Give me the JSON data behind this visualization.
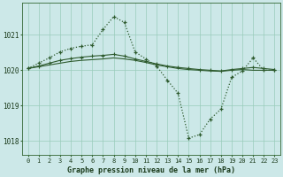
{
  "title": "Graphe pression niveau de la mer (hPa)",
  "bg_color": "#cce8e8",
  "line_color": "#2d5a2d",
  "grid_color": "#99ccbb",
  "x_labels": [
    "0",
    "1",
    "2",
    "3",
    "4",
    "5",
    "6",
    "7",
    "8",
    "9",
    "10",
    "11",
    "12",
    "13",
    "14",
    "15",
    "16",
    "17",
    "18",
    "19",
    "20",
    "21",
    "22",
    "23"
  ],
  "ylim": [
    1017.6,
    1021.9
  ],
  "yticks": [
    1018,
    1019,
    1020,
    1021
  ],
  "series_solid1": [
    1020.05,
    1020.1,
    1020.15,
    1020.2,
    1020.25,
    1020.28,
    1020.3,
    1020.32,
    1020.35,
    1020.32,
    1020.28,
    1020.22,
    1020.15,
    1020.1,
    1020.05,
    1020.02,
    1020.0,
    1019.98,
    1019.97,
    1020.0,
    1020.02,
    1020.0,
    1020.0,
    1020.0
  ],
  "series_solid2": [
    1020.05,
    1020.12,
    1020.2,
    1020.28,
    1020.33,
    1020.37,
    1020.4,
    1020.42,
    1020.45,
    1020.4,
    1020.32,
    1020.25,
    1020.18,
    1020.12,
    1020.08,
    1020.05,
    1020.02,
    1020.0,
    1019.98,
    1020.02,
    1020.05,
    1020.08,
    1020.05,
    1020.02
  ],
  "series_dotted": [
    1020.05,
    1020.2,
    1020.35,
    1020.52,
    1020.62,
    1020.68,
    1020.72,
    1021.15,
    1021.52,
    1021.35,
    1020.52,
    1020.32,
    1020.12,
    1019.72,
    1019.35,
    1018.08,
    1018.18,
    1018.62,
    1018.9,
    1019.8,
    1019.98,
    1020.35,
    1020.0,
    1020.0
  ]
}
